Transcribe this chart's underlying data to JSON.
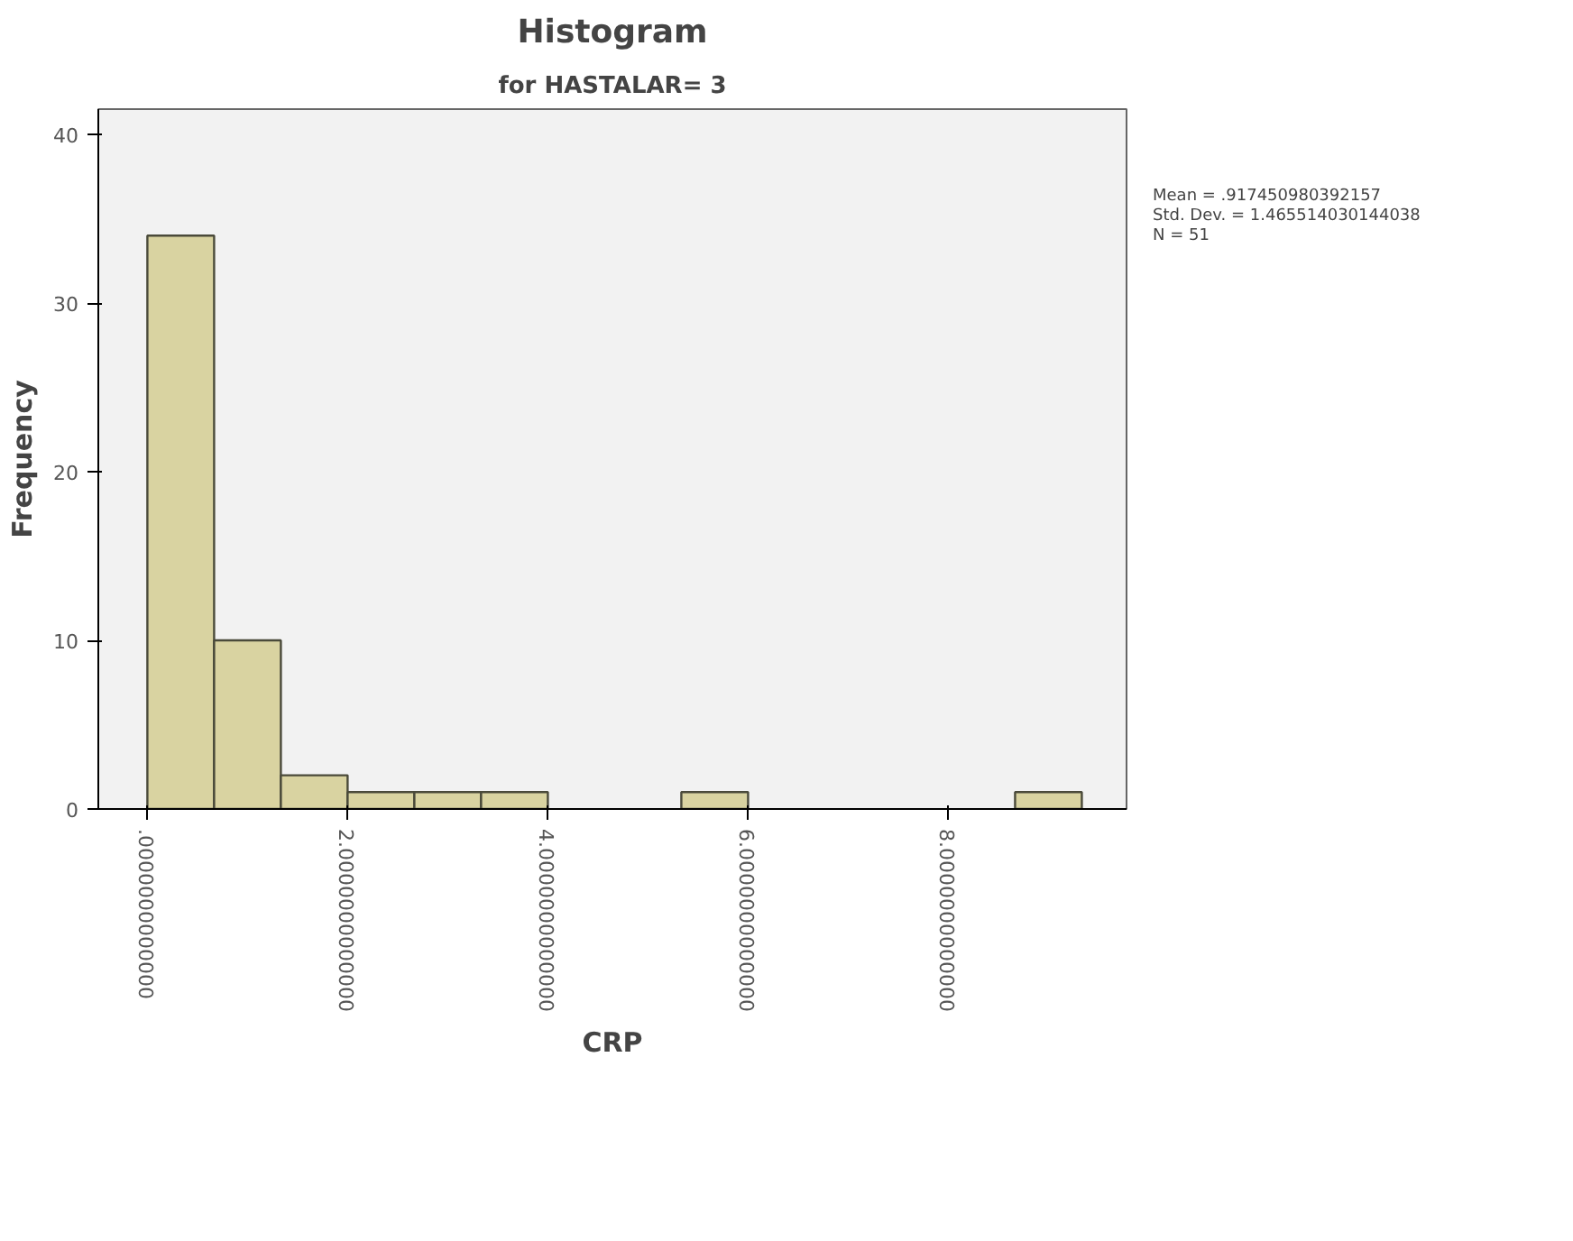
{
  "chart_data": {
    "type": "histogram",
    "title": "Histogram",
    "subtitle": "for HASTALAR= 3",
    "xlabel": "CRP",
    "ylabel": "Frequency",
    "bins": [
      0,
      0.6667,
      1.3333,
      2,
      2.6667,
      3.3333,
      4,
      4.6667,
      5.3333,
      6,
      6.6667,
      7.3333,
      8,
      8.6667,
      9.3333
    ],
    "values": [
      34,
      10,
      2,
      1,
      1,
      1,
      0,
      0,
      1,
      0,
      0,
      0,
      0,
      1
    ],
    "color": "#d9d3a1",
    "xlim": [
      -0.49,
      9.78
    ],
    "ylim": [
      0,
      41.5
    ],
    "xticks": [
      {
        "value": 0,
        "label": ".0000000000000"
      },
      {
        "value": 2,
        "label": "2.0000000000000"
      },
      {
        "value": 4,
        "label": "4.0000000000000"
      },
      {
        "value": 6,
        "label": "6.0000000000000"
      },
      {
        "value": 8,
        "label": "8.0000000000000"
      }
    ],
    "yticks": [
      0,
      10,
      20,
      30,
      40
    ],
    "annotations": [
      "Mean = .917450980392157",
      "Std. Dev. = 1.465514030144038",
      "N = 51"
    ]
  }
}
